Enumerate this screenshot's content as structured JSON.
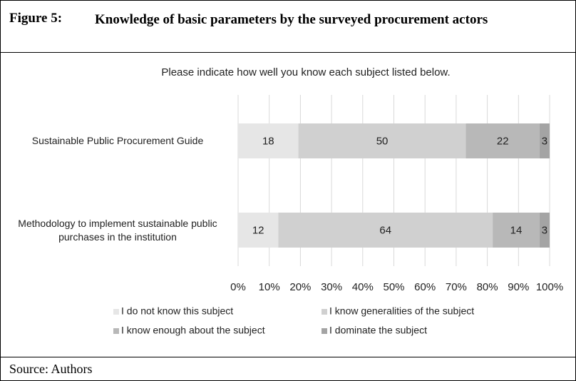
{
  "figure_label": "Figure 5:",
  "source": "Source: Authors",
  "chart_data": {
    "type": "bar",
    "orientation": "horizontal",
    "stacking": "percent",
    "title": "Knowledge of basic parameters by the surveyed procurement actors",
    "subtitle": "Please indicate how well you know each subject listed below.",
    "categories": [
      "Sustainable Public Procurement Guide",
      "Methodology to implement sustainable public purchases in the institution"
    ],
    "series": [
      {
        "name": "I do not know this subject",
        "color": "#e6e6e6",
        "values": [
          18,
          12
        ]
      },
      {
        "name": "I know generalities of the subject",
        "color": "#d0d0d0",
        "values": [
          50,
          64
        ]
      },
      {
        "name": "I know enough about the subject",
        "color": "#b8b8b8",
        "values": [
          22,
          14
        ]
      },
      {
        "name": "I dominate the subject",
        "color": "#a4a4a4",
        "values": [
          3,
          3
        ]
      }
    ],
    "xlim": [
      0,
      100
    ],
    "xticks": [
      {
        "value": 0,
        "label": "0%"
      },
      {
        "value": 10,
        "label": "10%"
      },
      {
        "value": 20,
        "label": "20%"
      },
      {
        "value": 30,
        "label": "30%"
      },
      {
        "value": 40,
        "label": "40%"
      },
      {
        "value": 50,
        "label": "50%"
      },
      {
        "value": 60,
        "label": "60%"
      },
      {
        "value": 70,
        "label": "70%"
      },
      {
        "value": 80,
        "label": "80%"
      },
      {
        "value": 90,
        "label": "90%"
      },
      {
        "value": 100,
        "label": "100%"
      }
    ],
    "grid": true,
    "legend": "bottom"
  }
}
